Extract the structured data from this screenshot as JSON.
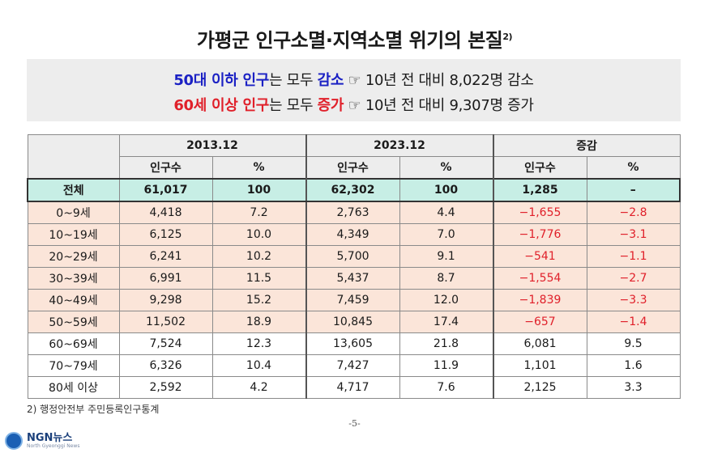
{
  "title": "가평군 인구소멸·지역소멸 위기의 본질",
  "title_footnote_mark": "2)",
  "summary": {
    "line1": {
      "highlight": "50대 이하 인구",
      "middle": "는 모두 ",
      "key": "감소",
      "symbol": "☞",
      "rest": " 10년 전 대비 8,022명 감소"
    },
    "line2": {
      "highlight": "60세 이상 인구",
      "middle": "는 모두 ",
      "key": "증가",
      "symbol": "☞",
      "rest": " 10년 전 대비 9,307명 증가"
    }
  },
  "table": {
    "groups": [
      "2013.12",
      "2023.12",
      "증감"
    ],
    "subheaders": [
      "인구수",
      "%",
      "인구수",
      "%",
      "인구수",
      "%"
    ],
    "rows": [
      {
        "label": "전체",
        "values": [
          "61,017",
          "100",
          "62,302",
          "100",
          "1,285",
          "–"
        ],
        "style": "total"
      },
      {
        "label": "0~9세",
        "values": [
          "4,418",
          "7.2",
          "2,763",
          "4.4",
          "−1,655",
          "−2.8"
        ],
        "style": "decrease"
      },
      {
        "label": "10~19세",
        "values": [
          "6,125",
          "10.0",
          "4,349",
          "7.0",
          "−1,776",
          "−3.1"
        ],
        "style": "decrease"
      },
      {
        "label": "20~29세",
        "values": [
          "6,241",
          "10.2",
          "5,700",
          "9.1",
          "−541",
          "−1.1"
        ],
        "style": "decrease"
      },
      {
        "label": "30~39세",
        "values": [
          "6,991",
          "11.5",
          "5,437",
          "8.7",
          "−1,554",
          "−2.7"
        ],
        "style": "decrease"
      },
      {
        "label": "40~49세",
        "values": [
          "9,298",
          "15.2",
          "7,459",
          "12.0",
          "−1,839",
          "−3.3"
        ],
        "style": "decrease"
      },
      {
        "label": "50~59세",
        "values": [
          "11,502",
          "18.9",
          "10,845",
          "17.4",
          "−657",
          "−1.4"
        ],
        "style": "decrease"
      },
      {
        "label": "60~69세",
        "values": [
          "7,524",
          "12.3",
          "13,605",
          "21.8",
          "6,081",
          "9.5"
        ],
        "style": "normal"
      },
      {
        "label": "70~79세",
        "values": [
          "6,326",
          "10.4",
          "7,427",
          "11.9",
          "1,101",
          "1.6"
        ],
        "style": "normal"
      },
      {
        "label": "80세 이상",
        "values": [
          "2,592",
          "4.2",
          "4,717",
          "7.6",
          "2,125",
          "3.3"
        ],
        "style": "normal"
      }
    ]
  },
  "footnote": "2) 행정안전부 주민등록인구통계",
  "page_number": "-5-",
  "logo": {
    "name": "NGN뉴스",
    "sub": "North Gyeonggi News"
  },
  "colors": {
    "blue": "#1b21c4",
    "red": "#e0202a",
    "total_bg": "#c7eee5",
    "decrease_bg": "#fbe5d9",
    "header_bg": "#ededed"
  }
}
